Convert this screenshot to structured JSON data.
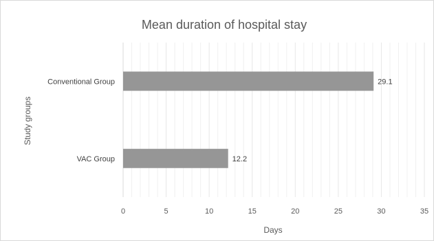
{
  "chart_data": {
    "type": "bar",
    "orientation": "horizontal",
    "title": "Mean duration of hospital stay",
    "xlabel": "Days",
    "ylabel": "Study groups",
    "categories": [
      "Conventional Group",
      "VAC Group"
    ],
    "values": [
      29.1,
      12.2
    ],
    "data_labels": [
      "29.1",
      "12.2"
    ],
    "xlim": [
      0,
      35
    ],
    "xticks": [
      0,
      5,
      10,
      15,
      20,
      25,
      30,
      35
    ],
    "grid": "vertical-minor",
    "legend": "none",
    "bar_color": "#969696"
  }
}
